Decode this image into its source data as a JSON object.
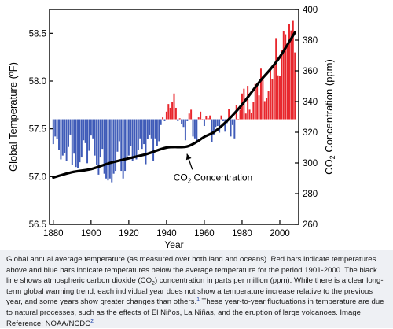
{
  "chart_data": {
    "type": "bar",
    "xlabel": "Year",
    "ylabel_left": "Global Temperature (ºF)",
    "ylabel_right": {
      "prefix": "CO",
      "sub": "2",
      "suffix": " Concentration (ppm)"
    },
    "xlim": [
      1878,
      2010
    ],
    "ylim_left": [
      56.5,
      58.75
    ],
    "ylim_right": [
      260,
      400
    ],
    "baseline": 57.6,
    "x_ticks": [
      1880,
      1900,
      1920,
      1940,
      1960,
      1980,
      2000
    ],
    "y_left_ticks": [
      56.5,
      57.0,
      57.5,
      58.0,
      58.5
    ],
    "y_left_tick_labels": [
      "56.5",
      "57.0",
      "57.5",
      "58.0",
      "58.5"
    ],
    "y_right_ticks": [
      260,
      280,
      300,
      320,
      340,
      360,
      380,
      400
    ],
    "bar_colors": {
      "above": "#e8262c",
      "below": "#3f5bb8"
    },
    "years": [
      1880,
      1881,
      1882,
      1883,
      1884,
      1885,
      1886,
      1887,
      1888,
      1889,
      1890,
      1891,
      1892,
      1893,
      1894,
      1895,
      1896,
      1897,
      1898,
      1899,
      1900,
      1901,
      1902,
      1903,
      1904,
      1905,
      1906,
      1907,
      1908,
      1909,
      1910,
      1911,
      1912,
      1913,
      1914,
      1915,
      1916,
      1917,
      1918,
      1919,
      1920,
      1921,
      1922,
      1923,
      1924,
      1925,
      1926,
      1927,
      1928,
      1929,
      1930,
      1931,
      1932,
      1933,
      1934,
      1935,
      1936,
      1937,
      1938,
      1939,
      1940,
      1941,
      1942,
      1943,
      1944,
      1945,
      1946,
      1947,
      1948,
      1949,
      1950,
      1951,
      1952,
      1953,
      1954,
      1955,
      1956,
      1957,
      1958,
      1959,
      1960,
      1961,
      1962,
      1963,
      1964,
      1965,
      1966,
      1967,
      1968,
      1969,
      1970,
      1971,
      1972,
      1973,
      1974,
      1975,
      1976,
      1977,
      1978,
      1979,
      1980,
      1981,
      1982,
      1983,
      1984,
      1985,
      1986,
      1987,
      1988,
      1989,
      1990,
      1991,
      1992,
      1993,
      1994,
      1995,
      1996,
      1997,
      1998,
      1999,
      2000,
      2001,
      2002,
      2003,
      2004,
      2005,
      2006,
      2007,
      2008
    ],
    "temperatures": [
      57.34,
      57.42,
      57.39,
      57.28,
      57.18,
      57.22,
      57.25,
      57.16,
      57.31,
      57.44,
      57.12,
      57.24,
      57.1,
      57.09,
      57.15,
      57.2,
      57.38,
      57.35,
      57.14,
      57.27,
      57.43,
      57.4,
      57.22,
      57.12,
      57.02,
      57.2,
      57.29,
      57.03,
      56.98,
      56.96,
      56.98,
      56.94,
      57.03,
      57.06,
      57.26,
      57.37,
      57.06,
      56.98,
      57.06,
      57.2,
      57.22,
      57.32,
      57.16,
      57.2,
      57.18,
      57.28,
      57.4,
      57.29,
      57.34,
      57.13,
      57.39,
      57.44,
      57.4,
      57.16,
      57.4,
      57.32,
      57.37,
      57.54,
      57.62,
      57.58,
      57.68,
      57.76,
      57.72,
      57.78,
      57.87,
      57.72,
      57.58,
      57.61,
      57.55,
      57.52,
      57.38,
      57.58,
      57.66,
      57.7,
      57.42,
      57.4,
      57.35,
      57.62,
      57.68,
      57.6,
      57.53,
      57.63,
      57.61,
      57.64,
      57.36,
      57.44,
      57.52,
      57.53,
      57.46,
      57.64,
      57.58,
      57.47,
      57.56,
      57.71,
      57.42,
      57.54,
      57.4,
      57.75,
      57.6,
      57.7,
      57.87,
      57.92,
      57.66,
      57.95,
      57.7,
      57.67,
      57.78,
      57.97,
      57.98,
      57.85,
      58.13,
      58.05,
      57.79,
      57.82,
      57.9,
      58.11,
      58.02,
      58.16,
      58.45,
      58.06,
      58.05,
      58.33,
      58.52,
      58.49,
      58.39,
      58.6,
      58.53,
      58.63,
      58.3
    ],
    "co2_years": [
      1880,
      1890,
      1900,
      1910,
      1920,
      1930,
      1940,
      1950,
      1955,
      1960,
      1965,
      1970,
      1975,
      1980,
      1985,
      1990,
      1995,
      2000,
      2005,
      2008
    ],
    "co2_ppm": [
      290.5,
      294,
      296,
      300,
      303,
      306,
      310,
      310.5,
      313,
      317,
      320,
      325,
      331,
      338,
      346,
      354,
      361,
      369,
      379,
      385
    ],
    "annotation": {
      "prefix": "CO",
      "sub": "2",
      "suffix": " Concentration",
      "x": 1952,
      "y": 57.0,
      "arrow_to_x": 1950,
      "arrow_to_y": 57.28
    }
  },
  "caption": {
    "segments": [
      {
        "t": "Global annual average temperature (as measured over both land and oceans). Red bars indicate temperatures above and blue bars indicate temperatures below the average temperature for the period 1901-2000. The black line shows atmospheric carbon dioxide (CO"
      },
      {
        "sub": "2"
      },
      {
        "t": ") concentration in parts per million (ppm). While there is a clear long-term global warming trend, each individual year does not show a temperature increase relative to the previous year, and some years show greater changes than others."
      },
      {
        "sup": "1",
        "link": true
      },
      {
        "t": " These year-to-year fluctuations in temperature are due to natural processes, such as the effects of El Niños, La Niñas, and the eruption of large volcanoes.  Image Reference: NOAA/NCDC"
      },
      {
        "sup": "2",
        "link": true
      }
    ]
  },
  "colors": {
    "caption_background": "#eef0f4",
    "link": "#1a3ea8",
    "co2_line": "#000000"
  }
}
